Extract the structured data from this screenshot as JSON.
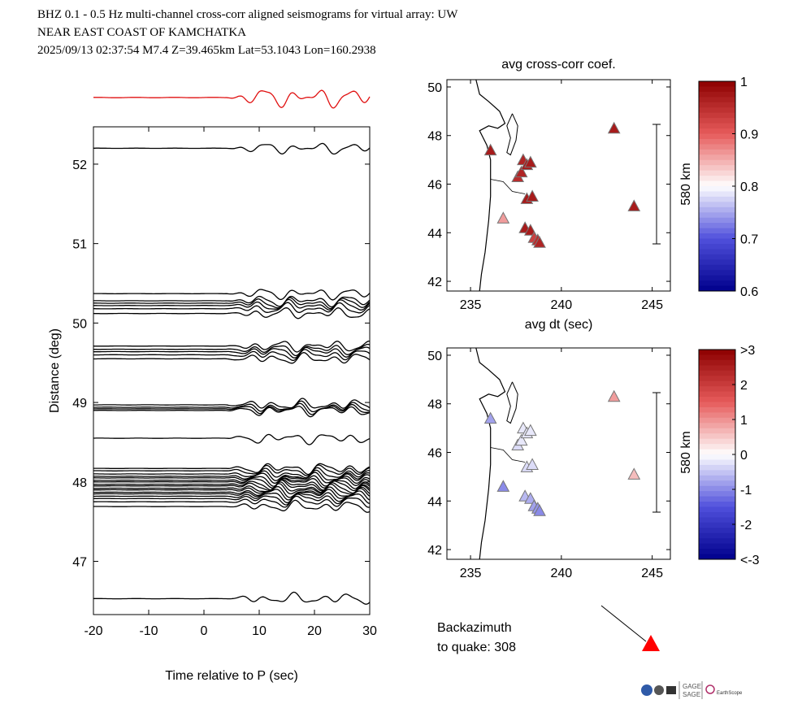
{
  "header": {
    "line1": "BHZ  0.1 - 0.5 Hz  multi-channel cross-corr aligned seismograms for virtual array: UW",
    "line2": "NEAR EAST COAST OF KAMCHATKA",
    "line3": "2025/09/13  02:37:54  M7.4  Z=39.465km Lat=53.1043 Lon=160.2938"
  },
  "backazimuth": {
    "label": "Backazimuth",
    "value_label": "to quake:  308"
  },
  "logos": {
    "gage": "GAGE",
    "sage": "SAGE",
    "earthscope": "EarthScope"
  },
  "colors": {
    "stack_trace": "#e01010",
    "trace": "#000000",
    "arrow_head": "#ff0000"
  },
  "chart_data": [
    {
      "type": "line",
      "title": "",
      "xlabel": "Time relative to P (sec)",
      "ylabel": "Distance (deg)",
      "xlim": [
        -20,
        30
      ],
      "ylim": [
        46.33,
        52.47
      ],
      "xticks": [
        -20,
        -10,
        0,
        10,
        20,
        30
      ],
      "yticks": [
        47,
        48,
        49,
        50,
        51,
        52
      ],
      "stack_trace": "red stacked beam above plot",
      "trace_distances": [
        52.2,
        50.37,
        50.28,
        50.25,
        50.22,
        50.18,
        50.12,
        49.71,
        49.67,
        49.64,
        49.6,
        49.55,
        48.97,
        48.94,
        48.92,
        48.9,
        48.55,
        48.17,
        48.14,
        48.1,
        48.07,
        48.05,
        48.02,
        48.0,
        47.97,
        47.95,
        47.92,
        47.9,
        47.87,
        47.85,
        47.82,
        47.79,
        47.75,
        47.69,
        46.53
      ]
    },
    {
      "type": "scatter",
      "title": "avg cross-corr coef.",
      "xlabel": "avg dt (sec)",
      "xlim": [
        233.7,
        246.0
      ],
      "ylim": [
        41.6,
        50.3
      ],
      "xticks": [
        235,
        240,
        245
      ],
      "yticks": [
        42,
        44,
        46,
        48,
        50
      ],
      "scale_bar_label": "580 km",
      "colorbar": {
        "min": 0.6,
        "max": 1,
        "ticks": [
          1,
          0.9,
          0.8,
          0.7,
          0.6
        ]
      },
      "points": [
        {
          "x": 236.1,
          "y": 47.4,
          "v": 0.97
        },
        {
          "x": 236.8,
          "y": 44.6,
          "v": 0.86
        },
        {
          "x": 237.6,
          "y": 46.3,
          "v": 0.95
        },
        {
          "x": 237.8,
          "y": 46.5,
          "v": 0.96
        },
        {
          "x": 237.9,
          "y": 47.0,
          "v": 0.96
        },
        {
          "x": 238.1,
          "y": 46.8,
          "v": 0.97
        },
        {
          "x": 238.3,
          "y": 46.9,
          "v": 0.97
        },
        {
          "x": 238.1,
          "y": 45.4,
          "v": 0.97
        },
        {
          "x": 238.4,
          "y": 45.5,
          "v": 0.97
        },
        {
          "x": 238.0,
          "y": 44.2,
          "v": 0.97
        },
        {
          "x": 238.3,
          "y": 44.1,
          "v": 0.97
        },
        {
          "x": 238.5,
          "y": 43.8,
          "v": 0.93
        },
        {
          "x": 238.7,
          "y": 43.7,
          "v": 0.95
        },
        {
          "x": 238.8,
          "y": 43.6,
          "v": 0.96
        },
        {
          "x": 242.9,
          "y": 48.3,
          "v": 0.97
        },
        {
          "x": 244.0,
          "y": 45.1,
          "v": 0.97
        }
      ]
    },
    {
      "type": "scatter",
      "title": "",
      "xlabel": "",
      "xlim": [
        233.7,
        246.0
      ],
      "ylim": [
        41.6,
        50.3
      ],
      "xticks": [
        235,
        240,
        245
      ],
      "yticks": [
        42,
        44,
        46,
        48,
        50
      ],
      "scale_bar_label": "580 km",
      "colorbar": {
        "min": -3,
        "max": 3,
        "ticks": [
          ">3",
          "2",
          "1",
          "0",
          "-1",
          "-2",
          "<-3"
        ]
      },
      "points": [
        {
          "x": 236.1,
          "y": 47.4,
          "v": -0.8
        },
        {
          "x": 236.8,
          "y": 44.6,
          "v": -1.0
        },
        {
          "x": 237.6,
          "y": 46.3,
          "v": -0.3
        },
        {
          "x": 237.8,
          "y": 46.5,
          "v": -0.2
        },
        {
          "x": 237.9,
          "y": 47.0,
          "v": -0.2
        },
        {
          "x": 238.1,
          "y": 46.8,
          "v": -0.2
        },
        {
          "x": 238.3,
          "y": 46.9,
          "v": -0.2
        },
        {
          "x": 238.1,
          "y": 45.4,
          "v": -0.3
        },
        {
          "x": 238.4,
          "y": 45.5,
          "v": -0.3
        },
        {
          "x": 238.0,
          "y": 44.2,
          "v": -0.6
        },
        {
          "x": 238.3,
          "y": 44.1,
          "v": -0.7
        },
        {
          "x": 238.5,
          "y": 43.8,
          "v": -0.8
        },
        {
          "x": 238.7,
          "y": 43.7,
          "v": -0.9
        },
        {
          "x": 238.8,
          "y": 43.6,
          "v": -1.0
        },
        {
          "x": 242.9,
          "y": 48.3,
          "v": 0.9
        },
        {
          "x": 244.0,
          "y": 45.1,
          "v": 0.6
        }
      ]
    }
  ]
}
